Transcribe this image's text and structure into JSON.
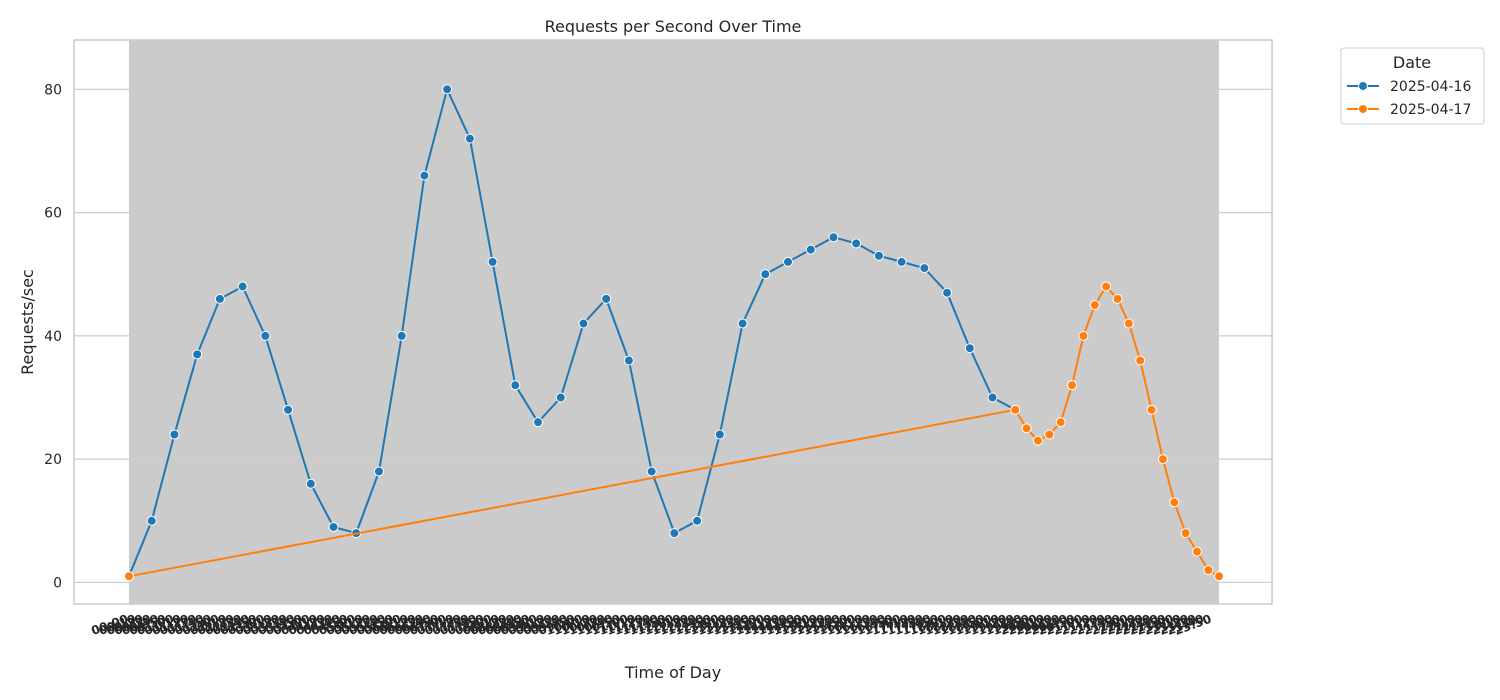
{
  "chart_data": {
    "type": "line",
    "title": "Requests per Second Over Time",
    "xlabel": "Time of Day",
    "ylabel": "Requests/sec",
    "ylim": [
      -3.5,
      88
    ],
    "yticks": [
      0,
      20,
      40,
      60,
      80
    ],
    "grid": true,
    "legend": {
      "title": "Date",
      "placement": "outside-top-right"
    },
    "x_range": [
      "00:00",
      "23:59"
    ],
    "series": [
      {
        "name": "2025-04-16",
        "color": "#1f77b4",
        "marker": "circle",
        "x": [
          "00:00",
          "00:30",
          "01:00",
          "01:30",
          "02:00",
          "02:30",
          "03:00",
          "03:30",
          "04:00",
          "04:30",
          "05:00",
          "05:30",
          "06:00",
          "06:30",
          "07:00",
          "07:30",
          "08:00",
          "08:30",
          "09:00",
          "09:30",
          "10:00",
          "10:30",
          "11:00",
          "11:30",
          "12:00",
          "12:30",
          "13:00",
          "13:30",
          "14:00",
          "14:30",
          "15:00",
          "15:30",
          "16:00",
          "16:30",
          "17:00",
          "17:30",
          "18:00",
          "18:30",
          "19:00",
          "19:30"
        ],
        "values": [
          1,
          10,
          24,
          37,
          46,
          48,
          40,
          28,
          16,
          9,
          8,
          18,
          40,
          66,
          80,
          72,
          52,
          32,
          26,
          30,
          42,
          46,
          36,
          18,
          8,
          10,
          24,
          42,
          50,
          52,
          54,
          56,
          55,
          53,
          52,
          51,
          47,
          38,
          30,
          28
        ]
      },
      {
        "name": "2025-04-17",
        "color": "#ff7f0e",
        "marker": "circle",
        "x": [
          "00:00",
          "19:30",
          "19:45",
          "20:00",
          "20:15",
          "20:30",
          "20:45",
          "21:00",
          "21:15",
          "21:30",
          "21:45",
          "22:00",
          "22:15",
          "22:30",
          "22:45",
          "23:00",
          "23:15",
          "23:30",
          "23:45",
          "23:59"
        ],
        "values": [
          1,
          28,
          25,
          23,
          24,
          26,
          32,
          40,
          45,
          48,
          46,
          42,
          36,
          28,
          20,
          13,
          8,
          5,
          2,
          1
        ]
      }
    ]
  }
}
